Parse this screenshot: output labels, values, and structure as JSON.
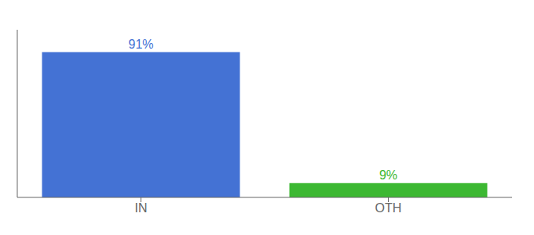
{
  "chart_data": {
    "type": "bar",
    "categories": [
      "IN",
      "OTH"
    ],
    "values": [
      91,
      9
    ],
    "value_labels": [
      "91%",
      "9%"
    ],
    "colors": [
      "#4472d4",
      "#3cb832"
    ],
    "ylim": [
      0,
      105
    ],
    "data_labels": true,
    "tick_labels": "x",
    "grid": false
  }
}
